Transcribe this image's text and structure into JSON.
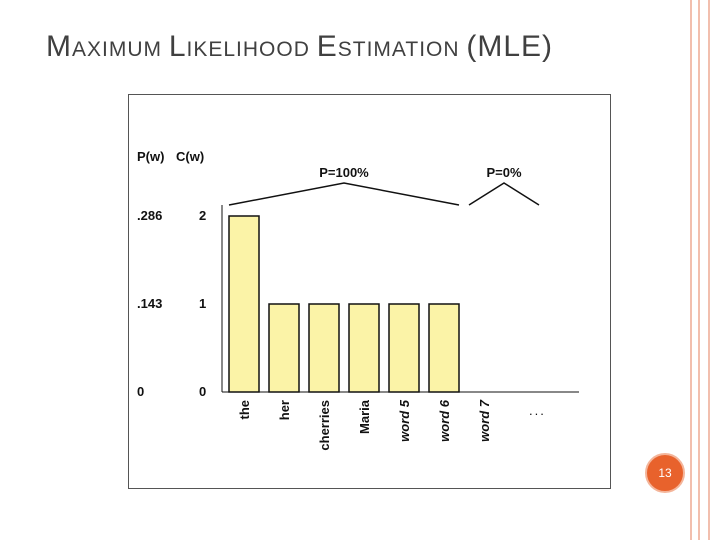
{
  "title": {
    "parts": [
      {
        "text": "M",
        "cls": "cap"
      },
      {
        "text": "AXIMUM ",
        "cls": "sc"
      },
      {
        "text": "L",
        "cls": "cap"
      },
      {
        "text": "IKELIHOOD ",
        "cls": "sc"
      },
      {
        "text": "E",
        "cls": "cap"
      },
      {
        "text": "STIMATION ",
        "cls": "sc"
      },
      {
        "text": "(MLE)",
        "cls": "cap"
      }
    ]
  },
  "slide_number": "13",
  "colors": {
    "bar_fill": "#fbf3a7",
    "bar_stroke": "#111111",
    "accent_rail": "#f2bfae",
    "badge": "#e8622c"
  },
  "chart_data": {
    "type": "bar",
    "categories": [
      "the",
      "her",
      "cherries",
      "Maria",
      "word 5",
      "word 6",
      "word 7"
    ],
    "category_italic": [
      false,
      false,
      false,
      false,
      true,
      true,
      true
    ],
    "values": [
      2,
      1,
      1,
      1,
      1,
      1,
      0
    ],
    "ylim": [
      0,
      2
    ],
    "y_columns": [
      {
        "header": "P(w)",
        "ticks": [
          ".286",
          ".143",
          "0"
        ]
      },
      {
        "header": "C(w)",
        "ticks": [
          "2",
          "1",
          "0"
        ]
      }
    ],
    "tick_values": [
      2,
      1,
      0
    ],
    "ellipsis": "...",
    "annotations": [
      {
        "text": "P=100%",
        "spans_categories": [
          0,
          5
        ]
      },
      {
        "text": "P=0%",
        "spans_categories": [
          6,
          7
        ]
      }
    ],
    "grid": false
  }
}
